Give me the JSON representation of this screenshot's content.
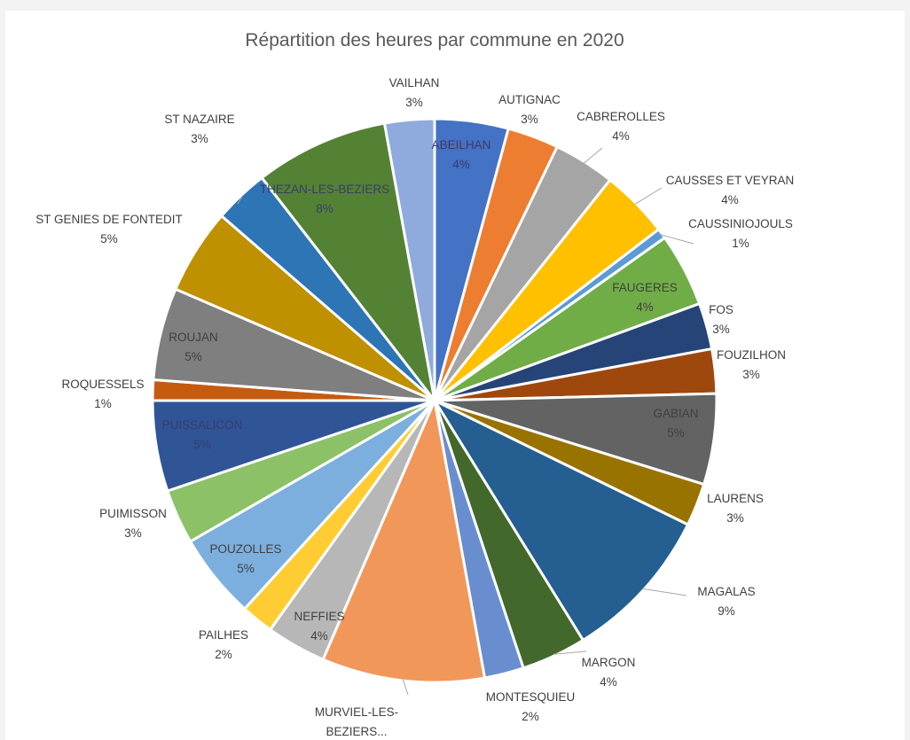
{
  "chart_data": {
    "type": "pie",
    "title": "Répartition des heures par commune en 2020",
    "slices": [
      {
        "label": "ABEILHAN",
        "pct_label": "4%",
        "value": 4.3,
        "color": "#4472c4"
      },
      {
        "label": "AUTIGNAC",
        "pct_label": "3%",
        "value": 3.0,
        "color": "#ed7d31"
      },
      {
        "label": "CABREROLLES",
        "pct_label": "4%",
        "value": 3.6,
        "color": "#a5a5a5"
      },
      {
        "label": "CAUSSES ET VEYRAN",
        "pct_label": "4%",
        "value": 4.0,
        "color": "#ffc000"
      },
      {
        "label": "CAUSSINIOJOULS",
        "pct_label": "1%",
        "value": 0.6,
        "color": "#5b9bd5"
      },
      {
        "label": "FAUGERES",
        "pct_label": "4%",
        "value": 4.3,
        "color": "#70ad47"
      },
      {
        "label": "FOS",
        "pct_label": "3%",
        "value": 2.7,
        "color": "#264478"
      },
      {
        "label": "FOUZILHON",
        "pct_label": "3%",
        "value": 2.6,
        "color": "#9e480e"
      },
      {
        "label": "GABIAN",
        "pct_label": "5%",
        "value": 5.3,
        "color": "#636363"
      },
      {
        "label": "LAURENS",
        "pct_label": "3%",
        "value": 2.5,
        "color": "#997300"
      },
      {
        "label": "MAGALAS",
        "pct_label": "9%",
        "value": 9.1,
        "color": "#255e91"
      },
      {
        "label": "MARGON",
        "pct_label": "4%",
        "value": 3.8,
        "color": "#43682b"
      },
      {
        "label": "MONTESQUIEU",
        "pct_label": "2%",
        "value": 2.3,
        "color": "#698ed0"
      },
      {
        "label": "MURVIEL-LES-BEZIERS...",
        "pct_label": "",
        "value": 9.5,
        "color": "#f1975a"
      },
      {
        "label": "NEFFIES",
        "pct_label": "4%",
        "value": 3.5,
        "color": "#b7b7b7"
      },
      {
        "label": "PAILHES",
        "pct_label": "2%",
        "value": 1.9,
        "color": "#ffcd33"
      },
      {
        "label": "POUZOLLES",
        "pct_label": "5%",
        "value": 5.0,
        "color": "#7cafdd"
      },
      {
        "label": "PUIMISSON",
        "pct_label": "3%",
        "value": 3.2,
        "color": "#8cc168"
      },
      {
        "label": "PUISSALICON",
        "pct_label": "5%",
        "value": 5.3,
        "color": "#2f5597"
      },
      {
        "label": "ROQUESSELS",
        "pct_label": "1%",
        "value": 1.2,
        "color": "#c55a11"
      },
      {
        "label": "ROUJAN",
        "pct_label": "5%",
        "value": 5.4,
        "color": "#7f7f7f"
      },
      {
        "label": "ST GENIES DE FONTEDIT",
        "pct_label": "5%",
        "value": 5.0,
        "color": "#bf9000"
      },
      {
        "label": "ST NAZAIRE",
        "pct_label": "3%",
        "value": 3.2,
        "color": "#2e75b6"
      },
      {
        "label": "THEZAN-LES-BEZIERS",
        "pct_label": "8%",
        "value": 7.8,
        "color": "#548235"
      },
      {
        "label": "VAILHAN",
        "pct_label": "3%",
        "value": 2.9,
        "color": "#8faadc"
      }
    ]
  }
}
